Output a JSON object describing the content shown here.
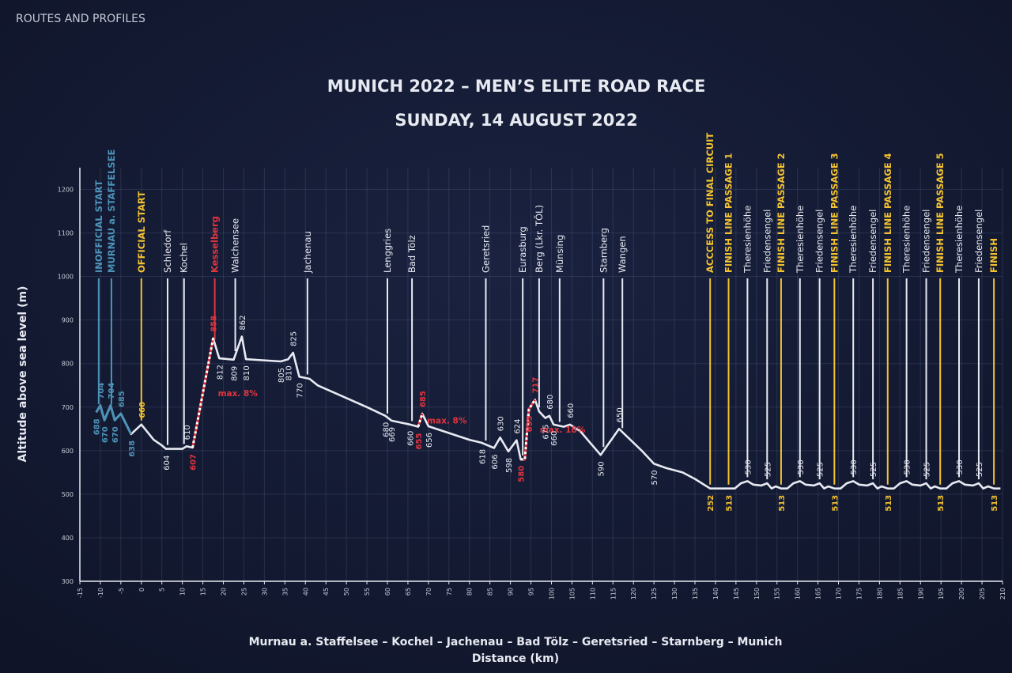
{
  "header": "ROUTES AND PROFILES",
  "chart_data": {
    "type": "line",
    "title": "MUNICH 2022 – MEN’S ELITE ROAD RACE",
    "subtitle": "SUNDAY, 14 AUGUST 2022",
    "route": "Murnau a. Staffelsee – Kochel – Jachenau – Bad Tölz – Geretsried – Starnberg – Munich",
    "xlabel": "Distance (km)",
    "ylabel": "Altitude above sea level (m)",
    "xlim": [
      -15,
      210
    ],
    "ylim": [
      300,
      1250
    ],
    "xticks": [
      -15,
      -10,
      -5,
      0,
      5,
      10,
      15,
      20,
      25,
      30,
      35,
      40,
      45,
      50,
      55,
      60,
      65,
      70,
      75,
      80,
      85,
      90,
      95,
      100,
      105,
      110,
      115,
      120,
      125,
      130,
      135,
      140,
      145,
      150,
      155,
      160,
      165,
      170,
      175,
      180,
      185,
      190,
      195,
      200,
      205,
      210
    ],
    "yticks": [
      300,
      400,
      500,
      600,
      700,
      800,
      900,
      1000,
      1100,
      1200
    ],
    "grid": true,
    "color": "#e8eaf2",
    "x": [
      -11,
      -10,
      -9,
      -7.5,
      -6.5,
      -5,
      -2.5,
      0,
      3,
      5,
      6,
      10,
      11,
      12.5,
      17.5,
      19,
      22.5,
      24.5,
      25.5,
      34,
      35.8,
      37,
      38.5,
      41,
      43,
      55,
      59.5,
      61,
      65.5,
      67.5,
      68.5,
      70,
      80,
      83,
      86,
      87.5,
      89.5,
      91.5,
      92.5,
      93.5,
      94.5,
      96,
      97,
      98.5,
      99.5,
      100.5,
      103,
      104.5,
      107,
      112,
      116.5,
      122,
      125,
      128,
      132,
      135,
      138.7,
      143.2,
      144.7,
      146.2,
      147.8,
      149.2,
      151.2,
      152.6,
      153.7,
      154.7,
      156,
      157.5,
      159,
      160.6,
      162,
      164,
      165.4,
      166.5,
      167.5,
      169,
      170.5,
      172,
      173.6,
      175,
      177,
      178.4,
      179.5,
      180.5,
      182,
      183.5,
      185,
      186.6,
      188,
      190,
      191.4,
      192.5,
      193.5,
      194.8,
      196.3,
      197.8,
      199.4,
      200.8,
      202.8,
      204.2,
      205.3,
      206.5,
      207.9,
      209.5
    ],
    "values": [
      688,
      704,
      670,
      704,
      670,
      685,
      638,
      660,
      625,
      612,
      604,
      604,
      610,
      607,
      858,
      812,
      809,
      862,
      810,
      805,
      810,
      825,
      770,
      765,
      750,
      700,
      680,
      669,
      660,
      655,
      685,
      656,
      625,
      618,
      606,
      630,
      598,
      624,
      580,
      580,
      695,
      717,
      690,
      675,
      680,
      660,
      655,
      660,
      645,
      590,
      650,
      600,
      570,
      560,
      550,
      535,
      513,
      513,
      513,
      525,
      530,
      522,
      520,
      525,
      513,
      518,
      513,
      513,
      525,
      530,
      522,
      520,
      525,
      513,
      518,
      513,
      513,
      525,
      530,
      522,
      520,
      525,
      513,
      518,
      513,
      513,
      525,
      530,
      522,
      520,
      525,
      513,
      518,
      513,
      513,
      525,
      530,
      522,
      520,
      525,
      513,
      518,
      513,
      513
    ],
    "value_labels": [
      "688",
      "704",
      "670",
      "704",
      "670",
      "685",
      "638",
      "660",
      null,
      null,
      "604",
      null,
      "610",
      "607",
      "858",
      "812",
      "809",
      "862",
      "810",
      "805",
      "810",
      "825",
      "770",
      null,
      null,
      null,
      "680",
      "669",
      "660",
      "655",
      "685",
      "656",
      null,
      "618",
      "606",
      "630",
      "598",
      "624",
      "580",
      null,
      "695",
      "717",
      null,
      "675",
      "680",
      "660",
      null,
      "660",
      null,
      "590",
      "650",
      null,
      "570",
      null,
      null,
      null,
      null,
      "513",
      null,
      null,
      "530",
      null,
      null,
      "525",
      null,
      null,
      "513",
      null,
      null,
      "530",
      null,
      null,
      "525",
      null,
      null,
      "513",
      null,
      null,
      "530",
      null,
      null,
      "525",
      null,
      null,
      "513",
      null,
      null,
      "530",
      null,
      null,
      "525",
      null,
      null,
      "513",
      null,
      null,
      "530",
      null,
      null,
      "525",
      null,
      null,
      "513",
      null
    ],
    "highlights": [
      {
        "from": -11,
        "to": -2.5,
        "color": "#4d93b8"
      },
      {
        "from": 12.5,
        "to": 17.5,
        "color": "#e0343f",
        "dashed": true,
        "label": "max. 8%"
      },
      {
        "from": 67.5,
        "to": 68.5,
        "color": "#e0343f",
        "dashed": true,
        "label": "max. 8%"
      },
      {
        "from": 92.5,
        "to": 96,
        "color": "#e0343f",
        "dashed": true,
        "label": "max. 18%"
      }
    ],
    "markers": [
      {
        "x": -10.4,
        "label": "INOFFICIAL START",
        "color": "#4d93b8"
      },
      {
        "x": -7.3,
        "label": "MURNAU a. STAFFELSEE",
        "color": "#4d93b8"
      },
      {
        "x": 0,
        "label": "OFFICIAL START",
        "color": "#f2c230"
      },
      {
        "x": 6.4,
        "label": "Schledorf",
        "color": "#e8eaf2"
      },
      {
        "x": 10.4,
        "label": "Kochel",
        "color": "#e8eaf2"
      },
      {
        "x": 17.9,
        "label": "Kesselberg",
        "color": "#e0343f"
      },
      {
        "x": 22.9,
        "label": "Walchensee",
        "color": "#e8eaf2"
      },
      {
        "x": 40.5,
        "label": "Jachenau",
        "color": "#e8eaf2"
      },
      {
        "x": 60,
        "label": "Lenggries",
        "color": "#e8eaf2"
      },
      {
        "x": 66,
        "label": "Bad Tölz",
        "color": "#e8eaf2"
      },
      {
        "x": 84,
        "label": "Geretsried",
        "color": "#e8eaf2"
      },
      {
        "x": 93,
        "label": "Eurasburg",
        "color": "#e8eaf2"
      },
      {
        "x": 97,
        "label": "Berg (Lkr. TÖL)",
        "color": "#e8eaf2"
      },
      {
        "x": 102,
        "label": "Münsing",
        "color": "#e8eaf2"
      },
      {
        "x": 112.7,
        "label": "Starnberg",
        "color": "#e8eaf2"
      },
      {
        "x": 117.3,
        "label": "Wangen",
        "color": "#e8eaf2"
      },
      {
        "x": 138.7,
        "label": "ACCCESS TO FINAL CIRCUIT",
        "color": "#f2c230",
        "note": "252"
      },
      {
        "x": 143.2,
        "label": "FINISH LINE PASSAGE 1",
        "color": "#f2c230"
      },
      {
        "x": 147.8,
        "label": "Theresienhöhe",
        "color": "#e8eaf2"
      },
      {
        "x": 152.6,
        "label": "Friedensengel",
        "color": "#e8eaf2"
      },
      {
        "x": 156,
        "label": "FINISH LINE PASSAGE 2",
        "color": "#f2c230"
      },
      {
        "x": 160.6,
        "label": "Theresienhöhe",
        "color": "#e8eaf2"
      },
      {
        "x": 165.4,
        "label": "Friedensengel",
        "color": "#e8eaf2"
      },
      {
        "x": 169,
        "label": "FINISH LINE PASSAGE 3",
        "color": "#f2c230"
      },
      {
        "x": 173.6,
        "label": "Theresienhöhe",
        "color": "#e8eaf2"
      },
      {
        "x": 178.4,
        "label": "Friedensengel",
        "color": "#e8eaf2"
      },
      {
        "x": 182,
        "label": "FINISH LINE PASSAGE 4",
        "color": "#f2c230"
      },
      {
        "x": 186.6,
        "label": "Theresienhöhe",
        "color": "#e8eaf2"
      },
      {
        "x": 191.4,
        "label": "Friedensengel",
        "color": "#e8eaf2"
      },
      {
        "x": 194.8,
        "label": "FINISH LINE PASSAGE 5",
        "color": "#f2c230"
      },
      {
        "x": 199.4,
        "label": "Theresienhöhe",
        "color": "#e8eaf2"
      },
      {
        "x": 204.2,
        "label": "Friedensengel",
        "color": "#e8eaf2"
      },
      {
        "x": 207.9,
        "label": "FINISH",
        "color": "#f2c230"
      }
    ]
  }
}
